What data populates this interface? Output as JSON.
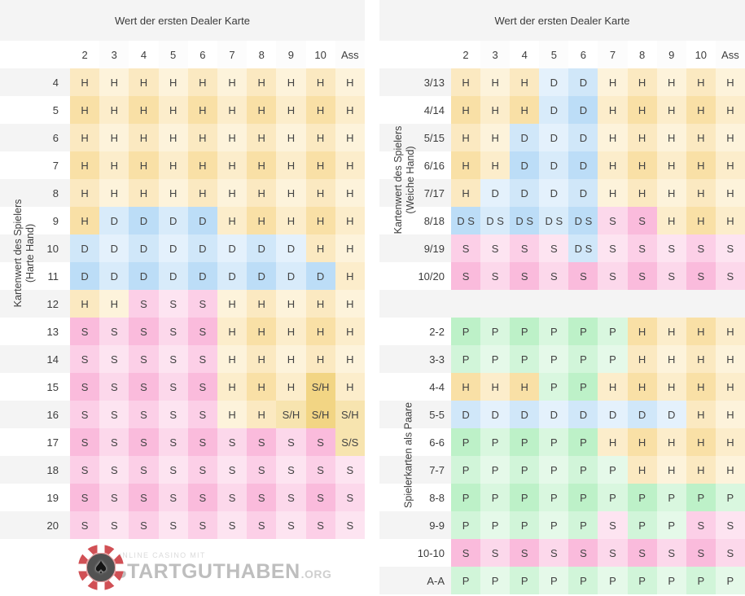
{
  "cell_colors": {
    "H": "#F9E0A6",
    "D": "#BCDDF7",
    "S": "#FABBDC",
    "P": "#BDF1C8",
    "S_H": "#F2D584",
    "stripe": "#F4F4F4"
  },
  "logo": {
    "tagline": "ONLINE CASINO MIT",
    "name": "STARTGUTHABEN",
    "tld": ".ORG"
  },
  "chart_data": [
    {
      "type": "table",
      "title": "Wert der ersten Dealer Karte",
      "side_label": [
        "Kartenwert des Spielers",
        "(Harte Hand)"
      ],
      "columns": [
        "2",
        "3",
        "4",
        "5",
        "6",
        "7",
        "8",
        "9",
        "10",
        "Ass"
      ],
      "row_labels": [
        "4",
        "5",
        "6",
        "7",
        "8",
        "9",
        "10",
        "11",
        "12",
        "13",
        "14",
        "15",
        "16",
        "17",
        "18",
        "19",
        "20"
      ],
      "rows": [
        [
          "H",
          "H",
          "H",
          "H",
          "H",
          "H",
          "H",
          "H",
          "H",
          "H"
        ],
        [
          "H",
          "H",
          "H",
          "H",
          "H",
          "H",
          "H",
          "H",
          "H",
          "H"
        ],
        [
          "H",
          "H",
          "H",
          "H",
          "H",
          "H",
          "H",
          "H",
          "H",
          "H"
        ],
        [
          "H",
          "H",
          "H",
          "H",
          "H",
          "H",
          "H",
          "H",
          "H",
          "H"
        ],
        [
          "H",
          "H",
          "H",
          "H",
          "H",
          "H",
          "H",
          "H",
          "H",
          "H"
        ],
        [
          "H",
          "D",
          "D",
          "D",
          "D",
          "H",
          "H",
          "H",
          "H",
          "H"
        ],
        [
          "D",
          "D",
          "D",
          "D",
          "D",
          "D",
          "D",
          "D",
          "H",
          "H"
        ],
        [
          "D",
          "D",
          "D",
          "D",
          "D",
          "D",
          "D",
          "D",
          "D",
          "H"
        ],
        [
          "H",
          "H",
          "S",
          "S",
          "S",
          "H",
          "H",
          "H",
          "H",
          "H"
        ],
        [
          "S",
          "S",
          "S",
          "S",
          "S",
          "H",
          "H",
          "H",
          "H",
          "H"
        ],
        [
          "S",
          "S",
          "S",
          "S",
          "S",
          "H",
          "H",
          "H",
          "H",
          "H"
        ],
        [
          "S",
          "S",
          "S",
          "S",
          "S",
          "H",
          "H",
          "H",
          "S/H",
          "H"
        ],
        [
          "S",
          "S",
          "S",
          "S",
          "S",
          "H",
          "H",
          "S/H",
          "S/H",
          "S/H"
        ],
        [
          "S",
          "S",
          "S",
          "S",
          "S",
          "S",
          "S",
          "S",
          "S",
          "S/S"
        ],
        [
          "S",
          "S",
          "S",
          "S",
          "S",
          "S",
          "S",
          "S",
          "S",
          "S"
        ],
        [
          "S",
          "S",
          "S",
          "S",
          "S",
          "S",
          "S",
          "S",
          "S",
          "S"
        ],
        [
          "S",
          "S",
          "S",
          "S",
          "S",
          "S",
          "S",
          "S",
          "S",
          "S"
        ]
      ]
    },
    {
      "type": "table",
      "title": "Wert der ersten Dealer Karte",
      "columns": [
        "2",
        "3",
        "4",
        "5",
        "6",
        "7",
        "8",
        "9",
        "10",
        "Ass"
      ],
      "sections": [
        {
          "side_label": [
            "Kartenwert des Spielers",
            "(Weiche Hand)"
          ],
          "row_labels": [
            "3/13",
            "4/14",
            "5/15",
            "6/16",
            "7/17",
            "8/18",
            "9/19",
            "10/20"
          ],
          "rows": [
            [
              "H",
              "H",
              "H",
              "D",
              "D",
              "H",
              "H",
              "H",
              "H",
              "H"
            ],
            [
              "H",
              "H",
              "H",
              "D",
              "D",
              "H",
              "H",
              "H",
              "H",
              "H"
            ],
            [
              "H",
              "H",
              "D",
              "D",
              "D",
              "H",
              "H",
              "H",
              "H",
              "H"
            ],
            [
              "H",
              "H",
              "D",
              "D",
              "D",
              "H",
              "H",
              "H",
              "H",
              "H"
            ],
            [
              "H",
              "D",
              "D",
              "D",
              "D",
              "H",
              "H",
              "H",
              "H",
              "H"
            ],
            [
              "D S",
              "D S",
              "D S",
              "D S",
              "D S",
              "S",
              "S",
              "H",
              "H",
              "H"
            ],
            [
              "S",
              "S",
              "S",
              "S",
              "D S",
              "S",
              "S",
              "S",
              "S",
              "S"
            ],
            [
              "S",
              "S",
              "S",
              "S",
              "S",
              "S",
              "S",
              "S",
              "S",
              "S"
            ]
          ]
        },
        {
          "side_label": [
            "Spielerkarten als Paare"
          ],
          "row_labels": [
            "2-2",
            "3-3",
            "4-4",
            "5-5",
            "6-6",
            "7-7",
            "8-8",
            "9-9",
            "10-10",
            "A-A"
          ],
          "rows": [
            [
              "P",
              "P",
              "P",
              "P",
              "P",
              "P",
              "H",
              "H",
              "H",
              "H"
            ],
            [
              "P",
              "P",
              "P",
              "P",
              "P",
              "P",
              "H",
              "H",
              "H",
              "H"
            ],
            [
              "H",
              "H",
              "H",
              "P",
              "P",
              "H",
              "H",
              "H",
              "H",
              "H"
            ],
            [
              "D",
              "D",
              "D",
              "D",
              "D",
              "D",
              "D",
              "D",
              "H",
              "H"
            ],
            [
              "P",
              "P",
              "P",
              "P",
              "P",
              "H",
              "H",
              "H",
              "H",
              "H"
            ],
            [
              "P",
              "P",
              "P",
              "P",
              "P",
              "P",
              "H",
              "H",
              "H",
              "H"
            ],
            [
              "P",
              "P",
              "P",
              "P",
              "P",
              "P",
              "P",
              "P",
              "P",
              "P"
            ],
            [
              "P",
              "P",
              "P",
              "P",
              "P",
              "S",
              "P",
              "P",
              "S",
              "S"
            ],
            [
              "S",
              "S",
              "S",
              "S",
              "S",
              "S",
              "S",
              "S",
              "S",
              "S"
            ],
            [
              "P",
              "P",
              "P",
              "P",
              "P",
              "P",
              "P",
              "P",
              "P",
              "P"
            ]
          ]
        }
      ]
    }
  ]
}
